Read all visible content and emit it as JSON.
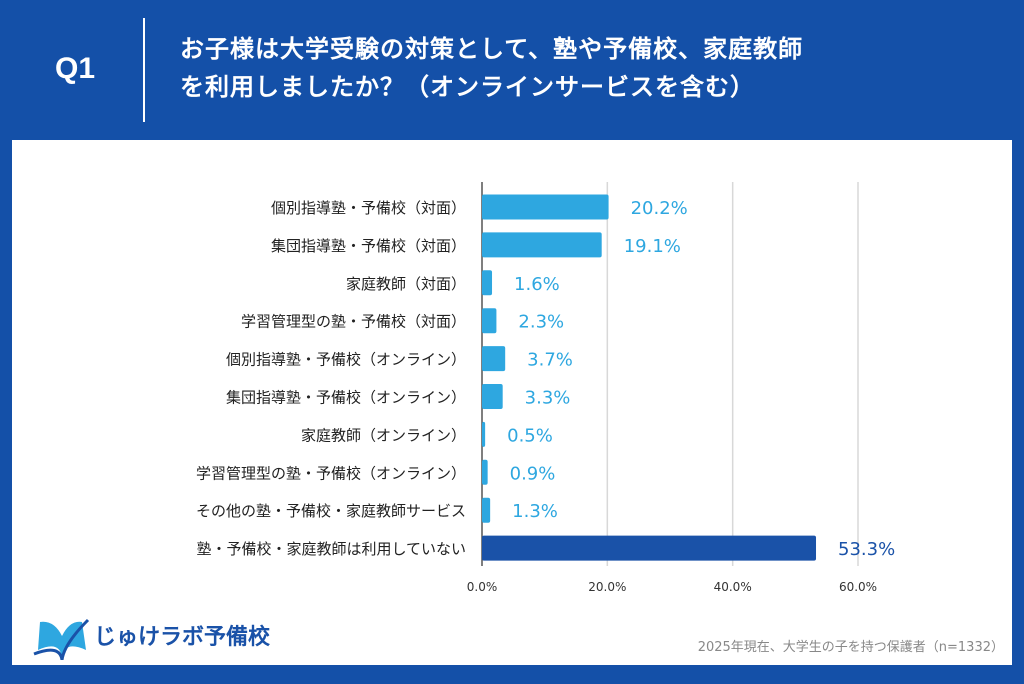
{
  "header": {
    "q": "Q1",
    "title_line1": "お子様は大学受験の対策として、塾や予備校、家庭教師",
    "title_line2": "を利用しましたか？（オンラインサービスを含む）"
  },
  "chart_data": {
    "type": "bar",
    "orientation": "horizontal",
    "categories": [
      "個別指導塾・予備校（対面）",
      "集団指導塾・予備校（対面）",
      "家庭教師（対面）",
      "学習管理型の塾・予備校（対面）",
      "個別指導塾・予備校（オンライン）",
      "集団指導塾・予備校（オンライン）",
      "家庭教師（オンライン）",
      "学習管理型の塾・予備校（オンライン）",
      "その他の塾・予備校・家庭教師サービス",
      "塾・予備校・家庭教師は利用していない"
    ],
    "values": [
      20.2,
      19.1,
      1.6,
      2.3,
      3.7,
      3.3,
      0.5,
      0.9,
      1.3,
      53.3
    ],
    "value_labels": [
      "20.2%",
      "19.1%",
      "1.6%",
      "2.3%",
      "3.7%",
      "3.3%",
      "0.5%",
      "0.9%",
      "1.3%",
      "53.3%"
    ],
    "xticks": [
      0,
      20,
      40,
      60
    ],
    "xtick_labels": [
      "0.0%",
      "20.0%",
      "40.0%",
      "60.0%"
    ],
    "xlim": [
      0,
      60
    ],
    "grid": true,
    "colors": {
      "default": "#2ea7e0",
      "highlight": "#1a52a8"
    }
  },
  "footer": {
    "logo": "じゅけラボ予備校",
    "note": "2025年現在、大学生の子を持つ保護者（n=1332）"
  }
}
